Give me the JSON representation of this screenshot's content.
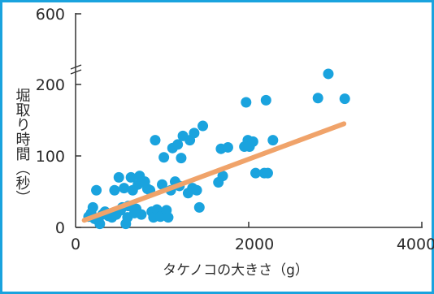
{
  "chart_data": {
    "type": "scatter",
    "xlabel": "タケノコの大きさ（g）",
    "ylabel": "堀取り時間（秒）",
    "x_ticks": [
      "0",
      "2000",
      "4000"
    ],
    "y_ticks": [
      "0",
      "100",
      "200",
      "600"
    ],
    "y_axis_break": {
      "from": 200,
      "to": 600
    },
    "xlim": [
      0,
      4000
    ],
    "ylim": [
      0,
      200
    ],
    "colors": {
      "points": "#1aa3de",
      "trend": "#f0a36a",
      "frame": "#1aa3de",
      "axis": "#333333"
    },
    "trendline": {
      "x": [
        100,
        3100
      ],
      "y": [
        10,
        145
      ]
    },
    "points": [
      {
        "x": 150,
        "y": 15
      },
      {
        "x": 180,
        "y": 20
      },
      {
        "x": 200,
        "y": 28
      },
      {
        "x": 220,
        "y": 12
      },
      {
        "x": 240,
        "y": 52
      },
      {
        "x": 260,
        "y": 10
      },
      {
        "x": 280,
        "y": 5
      },
      {
        "x": 310,
        "y": 18
      },
      {
        "x": 340,
        "y": 22
      },
      {
        "x": 380,
        "y": 16
      },
      {
        "x": 420,
        "y": 14
      },
      {
        "x": 450,
        "y": 52
      },
      {
        "x": 470,
        "y": 18
      },
      {
        "x": 500,
        "y": 70
      },
      {
        "x": 520,
        "y": 24
      },
      {
        "x": 540,
        "y": 28
      },
      {
        "x": 560,
        "y": 55
      },
      {
        "x": 580,
        "y": 5
      },
      {
        "x": 600,
        "y": 14
      },
      {
        "x": 610,
        "y": 30
      },
      {
        "x": 640,
        "y": 70
      },
      {
        "x": 660,
        "y": 52
      },
      {
        "x": 680,
        "y": 20
      },
      {
        "x": 700,
        "y": 26
      },
      {
        "x": 720,
        "y": 60
      },
      {
        "x": 740,
        "y": 72
      },
      {
        "x": 760,
        "y": 18
      },
      {
        "x": 800,
        "y": 64
      },
      {
        "x": 830,
        "y": 54
      },
      {
        "x": 860,
        "y": 52
      },
      {
        "x": 880,
        "y": 22
      },
      {
        "x": 900,
        "y": 14
      },
      {
        "x": 920,
        "y": 122
      },
      {
        "x": 940,
        "y": 25
      },
      {
        "x": 980,
        "y": 15
      },
      {
        "x": 1000,
        "y": 60
      },
      {
        "x": 1020,
        "y": 98
      },
      {
        "x": 1050,
        "y": 24
      },
      {
        "x": 1070,
        "y": 14
      },
      {
        "x": 1100,
        "y": 52
      },
      {
        "x": 1120,
        "y": 111
      },
      {
        "x": 1150,
        "y": 64
      },
      {
        "x": 1180,
        "y": 116
      },
      {
        "x": 1200,
        "y": 58
      },
      {
        "x": 1220,
        "y": 97
      },
      {
        "x": 1240,
        "y": 128
      },
      {
        "x": 1300,
        "y": 48
      },
      {
        "x": 1320,
        "y": 122
      },
      {
        "x": 1350,
        "y": 55
      },
      {
        "x": 1370,
        "y": 132
      },
      {
        "x": 1400,
        "y": 52
      },
      {
        "x": 1430,
        "y": 28
      },
      {
        "x": 1470,
        "y": 142
      },
      {
        "x": 1650,
        "y": 63
      },
      {
        "x": 1680,
        "y": 110
      },
      {
        "x": 1700,
        "y": 72
      },
      {
        "x": 1760,
        "y": 112
      },
      {
        "x": 1950,
        "y": 113
      },
      {
        "x": 1970,
        "y": 175
      },
      {
        "x": 1990,
        "y": 122
      },
      {
        "x": 2010,
        "y": 113
      },
      {
        "x": 2050,
        "y": 120
      },
      {
        "x": 2080,
        "y": 76
      },
      {
        "x": 2180,
        "y": 76
      },
      {
        "x": 2200,
        "y": 178
      },
      {
        "x": 2220,
        "y": 76
      },
      {
        "x": 2280,
        "y": 122
      },
      {
        "x": 2800,
        "y": 181
      },
      {
        "x": 2920,
        "y": 260
      },
      {
        "x": 3110,
        "y": 180
      }
    ]
  }
}
